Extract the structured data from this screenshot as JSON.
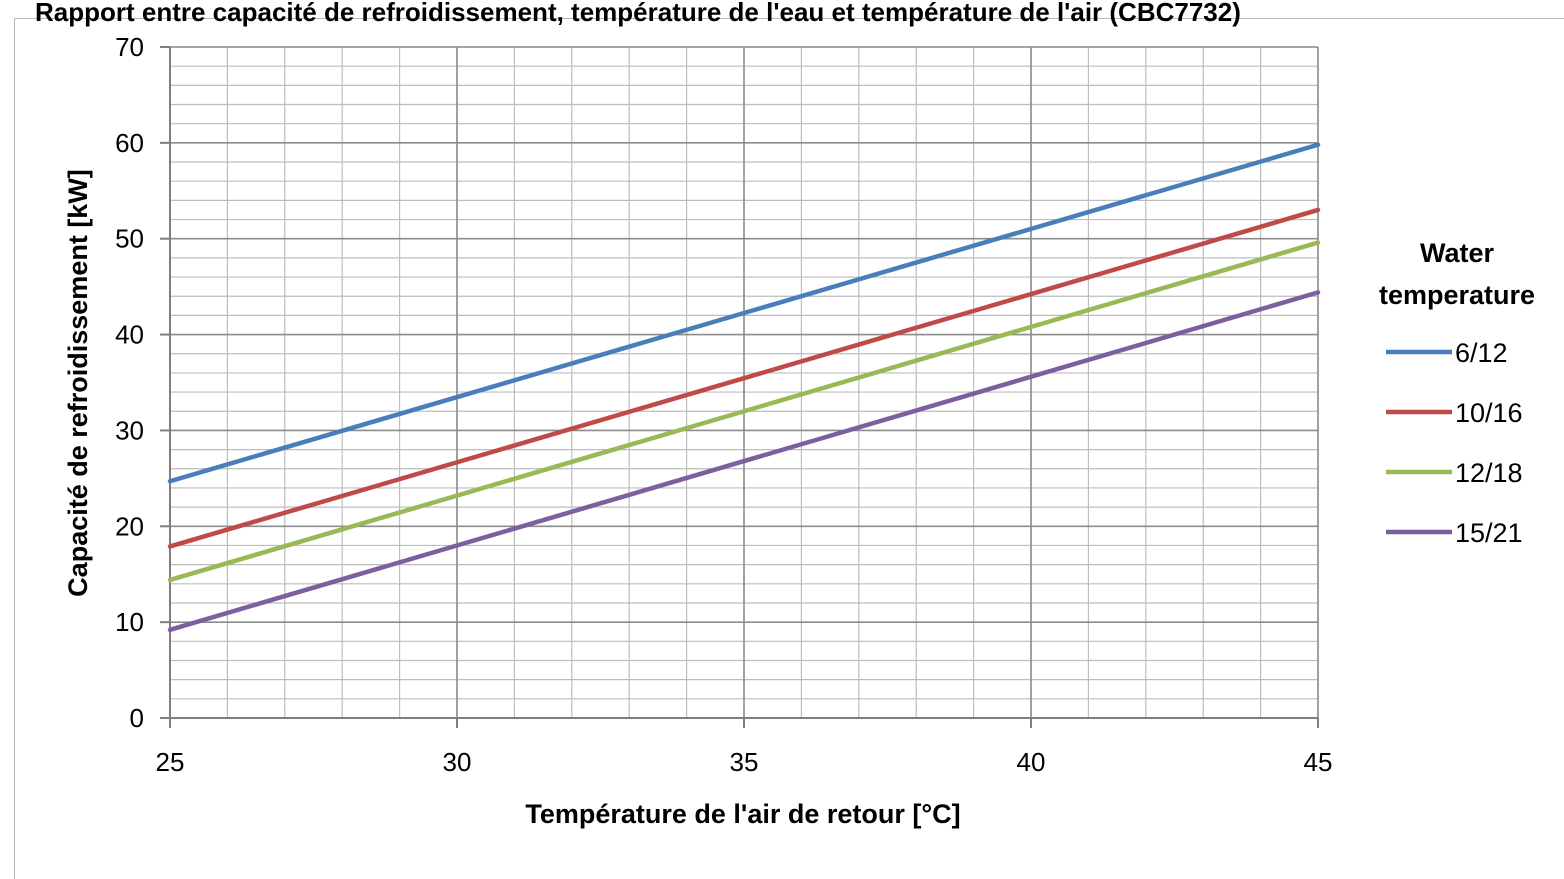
{
  "chart_data": {
    "type": "line",
    "title": "Rapport entre capacité de refroidissement, température de l'eau et température de l'air (CBC7732)",
    "xlabel": "Température de l'air de retour [°C]",
    "ylabel": "Capacité de refroidissement [kW]",
    "xlim": [
      25,
      45
    ],
    "ylim": [
      0,
      70
    ],
    "x_ticks": [
      25,
      30,
      35,
      40,
      45
    ],
    "y_ticks": [
      0,
      10,
      20,
      30,
      40,
      50,
      60,
      70
    ],
    "grid": true,
    "legend_position": "right",
    "legend_title": [
      "Water",
      "temperature"
    ],
    "x": [
      25,
      45
    ],
    "series": [
      {
        "name": "6/12",
        "color": "#4a7ebb",
        "values": [
          24.7,
          59.8
        ]
      },
      {
        "name": "10/16",
        "color": "#be4b48",
        "values": [
          17.9,
          53.0
        ]
      },
      {
        "name": "12/18",
        "color": "#98b954",
        "values": [
          14.4,
          49.6
        ]
      },
      {
        "name": "15/21",
        "color": "#7d5fa0",
        "values": [
          9.2,
          44.4
        ]
      }
    ]
  }
}
